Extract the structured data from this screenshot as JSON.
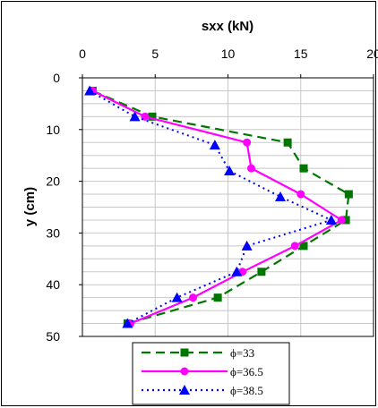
{
  "chart_data": {
    "type": "line",
    "xlabel": "sxx (kN)",
    "ylabel": "y (cm)",
    "xlim": [
      0,
      20
    ],
    "ylim": [
      0,
      50
    ],
    "x_ticks": [
      "0",
      "5",
      "10",
      "15",
      "20"
    ],
    "y_ticks": [
      "0",
      "10",
      "20",
      "30",
      "40",
      "50"
    ],
    "x_axis_position": "top",
    "y_axis_inverted": true,
    "grid": true,
    "legend_position": "bottom-center",
    "series": [
      {
        "name": "ϕ=33",
        "color": "#007700",
        "line_style": "dash",
        "marker": "square",
        "points": [
          {
            "x": 0.7,
            "y": 2.5
          },
          {
            "x": 4.8,
            "y": 7.5
          },
          {
            "x": 14.1,
            "y": 12.5
          },
          {
            "x": 15.2,
            "y": 17.5
          },
          {
            "x": 18.3,
            "y": 22.5
          },
          {
            "x": 18.1,
            "y": 27.5
          },
          {
            "x": 15.2,
            "y": 32.5
          },
          {
            "x": 12.3,
            "y": 37.5
          },
          {
            "x": 9.3,
            "y": 42.5
          },
          {
            "x": 3.1,
            "y": 47.5
          }
        ]
      },
      {
        "name": "ϕ=36.5",
        "color": "#ff00ff",
        "line_style": "solid",
        "marker": "circle",
        "points": [
          {
            "x": 0.7,
            "y": 2.5
          },
          {
            "x": 4.3,
            "y": 7.5
          },
          {
            "x": 11.3,
            "y": 12.5
          },
          {
            "x": 11.6,
            "y": 17.5
          },
          {
            "x": 15.0,
            "y": 22.5
          },
          {
            "x": 17.8,
            "y": 27.5
          },
          {
            "x": 14.6,
            "y": 32.5
          },
          {
            "x": 11.0,
            "y": 37.5
          },
          {
            "x": 7.6,
            "y": 42.5
          },
          {
            "x": 3.3,
            "y": 47.5
          }
        ]
      },
      {
        "name": "ϕ=38.5",
        "color": "#0000ff",
        "line_style": "dot",
        "marker": "triangle",
        "points": [
          {
            "x": 0.5,
            "y": 2.5
          },
          {
            "x": 3.6,
            "y": 7.5
          },
          {
            "x": 9.1,
            "y": 13.0
          },
          {
            "x": 10.1,
            "y": 18.0
          },
          {
            "x": 13.6,
            "y": 23.0
          },
          {
            "x": 17.1,
            "y": 27.5
          },
          {
            "x": 11.3,
            "y": 32.5
          },
          {
            "x": 10.6,
            "y": 37.5
          },
          {
            "x": 6.5,
            "y": 42.5
          },
          {
            "x": 3.1,
            "y": 47.5
          }
        ]
      }
    ]
  }
}
